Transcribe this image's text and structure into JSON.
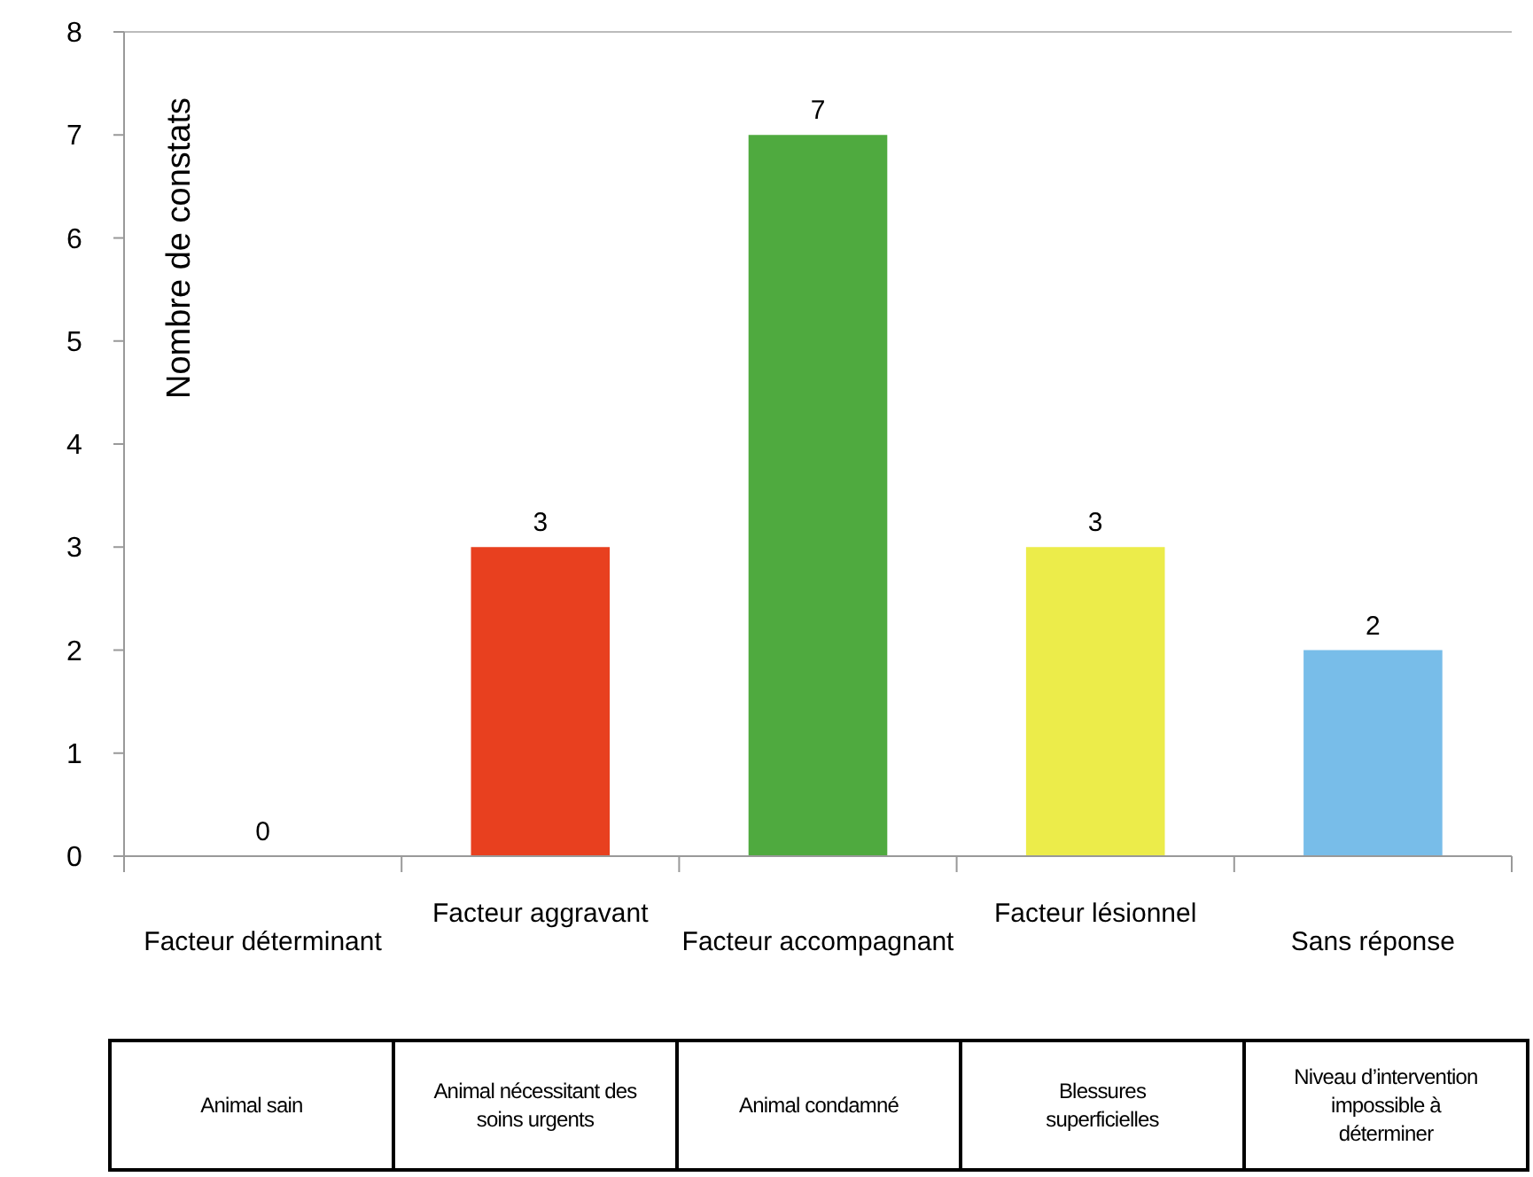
{
  "chart_data": {
    "type": "bar",
    "ylabel": "Nombre de constats",
    "categories": [
      "Facteur déterminant",
      "Facteur aggravant",
      "Facteur accompagnant",
      "Facteur lésionnel",
      "Sans réponse"
    ],
    "values": [
      0,
      3,
      7,
      3,
      2
    ],
    "colors": [
      "#e8401f",
      "#e8401f",
      "#4faa3f",
      "#ecec4a",
      "#78bde9"
    ],
    "ylim": [
      0,
      8
    ],
    "yticks": [
      0,
      1,
      2,
      3,
      4,
      5,
      6,
      7,
      8
    ],
    "grid": false,
    "data_labels": true,
    "annotations": [
      "Animal sain",
      "Animal nécessitant des soins urgents",
      "Animal condamné",
      "Blessures superficielles",
      "Niveau d’intervention impossible à déterminer"
    ]
  }
}
